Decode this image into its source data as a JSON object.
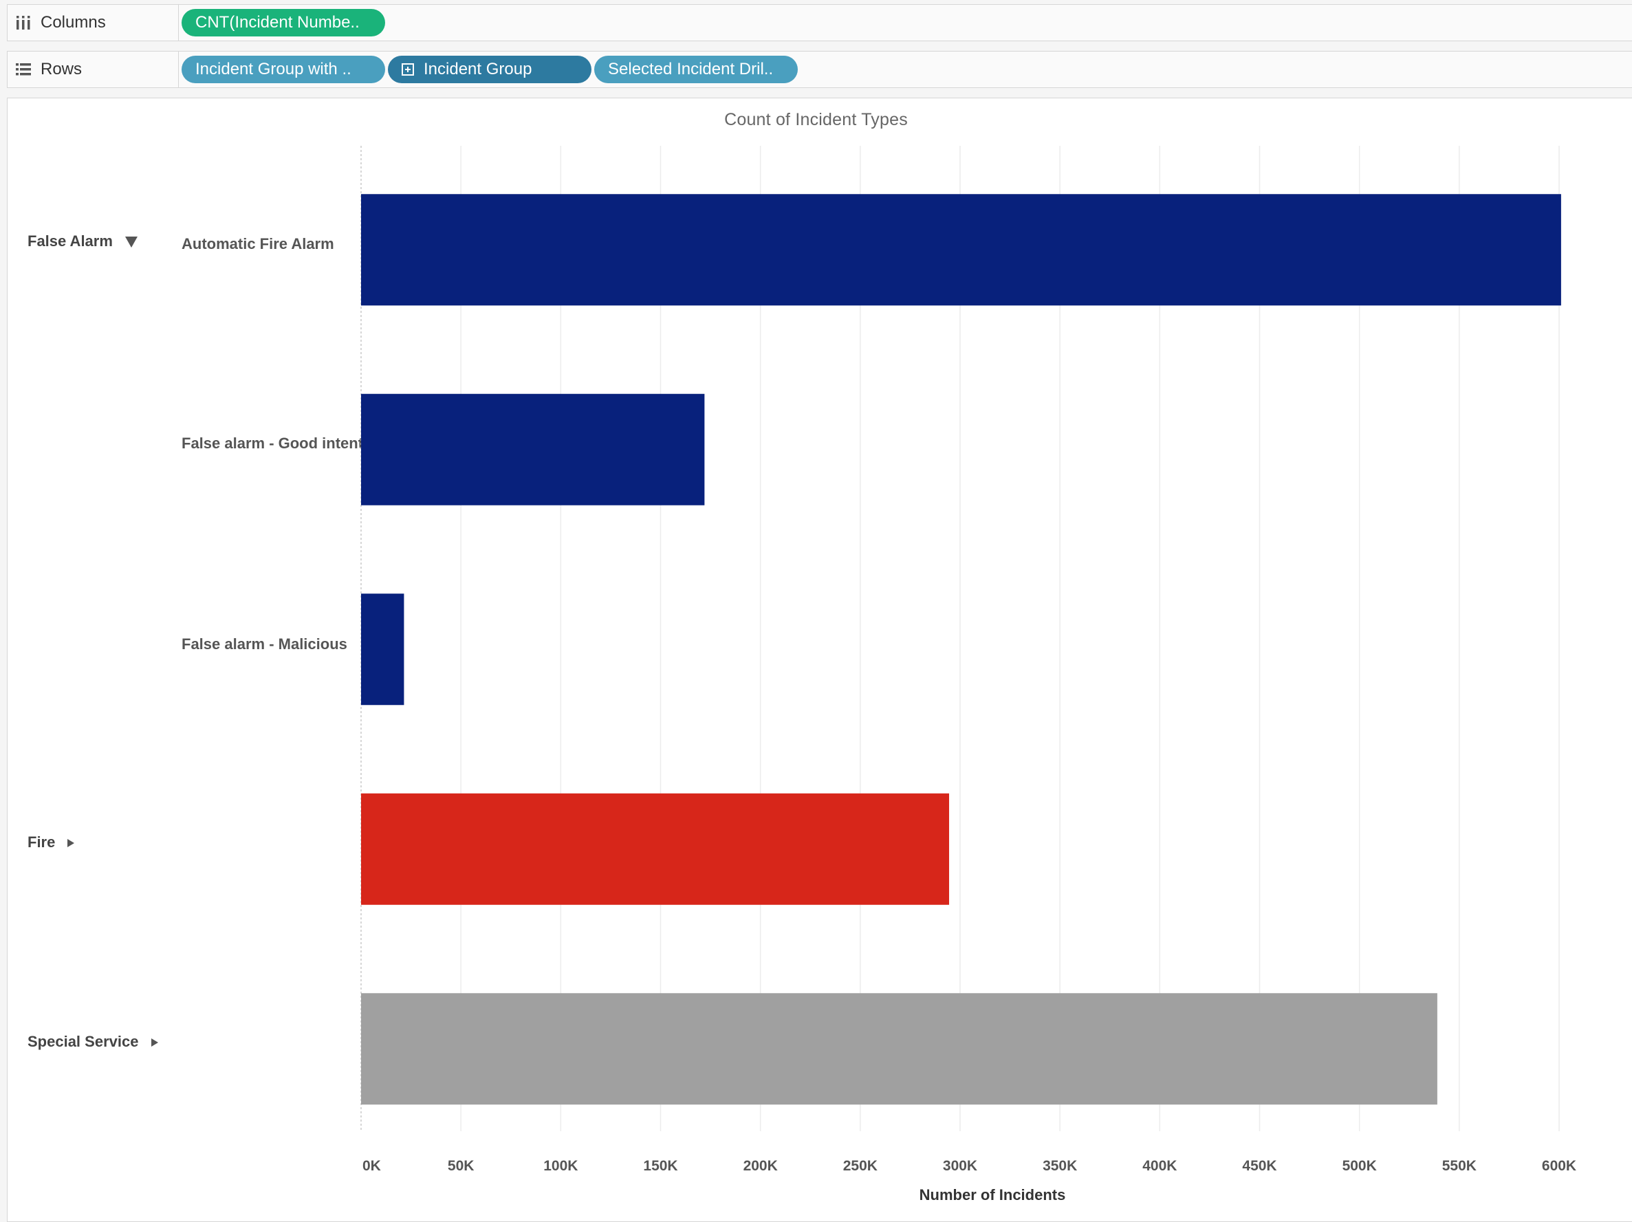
{
  "shelves": {
    "columns": {
      "label": "Columns",
      "icon": "columns-icon",
      "pills": [
        {
          "text": "CNT(Incident Numbe..",
          "color": "#1ab37a"
        }
      ]
    },
    "rows": {
      "label": "Rows",
      "icon": "rows-icon",
      "pills": [
        {
          "text": "Incident Group with ..",
          "color": "#4a9fbf"
        },
        {
          "text": "Incident Group",
          "color": "#2d7aa0"
        },
        {
          "text": "Selected Incident Dril..",
          "color": "#4a9fbf"
        }
      ]
    }
  },
  "chart_data": {
    "type": "bar",
    "orientation": "horizontal",
    "title": "Count of Incident Types",
    "xlabel": "Number of Incidents",
    "ylabel": "",
    "xlim": [
      0,
      600000
    ],
    "x_ticks": [
      0,
      50000,
      100000,
      150000,
      200000,
      250000,
      300000,
      350000,
      400000,
      450000,
      500000,
      550000,
      600000
    ],
    "x_tick_labels": [
      "0K",
      "50K",
      "100K",
      "150K",
      "200K",
      "250K",
      "300K",
      "350K",
      "400K",
      "450K",
      "500K",
      "550K",
      "600K"
    ],
    "grid": "vertical",
    "groups": [
      {
        "label": "False Alarm",
        "expanded": true
      },
      {
        "label": "Fire",
        "expanded": false
      },
      {
        "label": "Special Service",
        "expanded": false
      }
    ],
    "categories": [
      {
        "group": "False Alarm",
        "label": "Automatic Fire Alarm"
      },
      {
        "group": "False Alarm",
        "label": "False alarm - Good intent"
      },
      {
        "group": "False Alarm",
        "label": "False alarm - Malicious"
      },
      {
        "group": "Fire",
        "label": ""
      },
      {
        "group": "Special Service",
        "label": ""
      }
    ],
    "values": [
      601000,
      172000,
      21500,
      294500,
      539000
    ],
    "colors": [
      "#08217c",
      "#08217c",
      "#08217c",
      "#d7261a",
      "#a0a0a0"
    ]
  }
}
